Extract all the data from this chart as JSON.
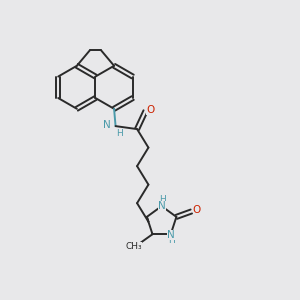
{
  "bg_color": "#e8e8ea",
  "bond_color": "#2a2a2a",
  "nitrogen_color": "#4a9aaa",
  "oxygen_color": "#cc2200",
  "figsize": [
    3.0,
    3.0
  ],
  "dpi": 100,
  "xlim": [
    0,
    10
  ],
  "ylim": [
    0,
    10
  ]
}
